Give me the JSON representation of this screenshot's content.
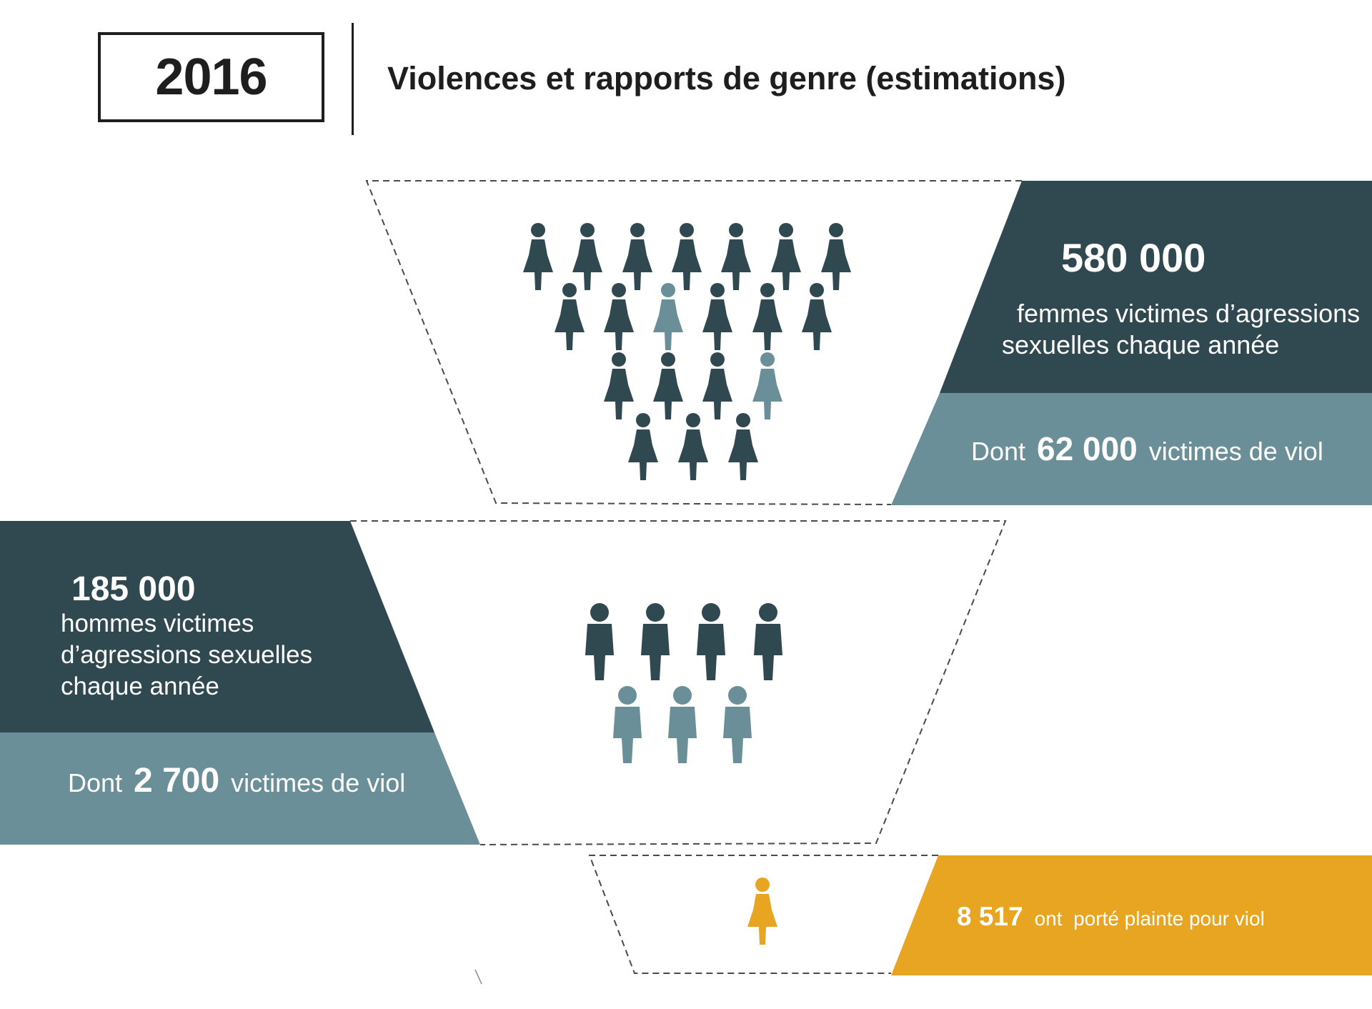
{
  "header": {
    "year": "2016",
    "title": "Violences et rapports de genre (estimations)"
  },
  "colors": {
    "dark": "#30484f",
    "light": "#6a8f98",
    "accent": "#e8a522",
    "text": "#1e1e1e"
  },
  "icons": {
    "women_group": "woman-icon",
    "men_group": "man-icon",
    "complaint": "woman-icon"
  },
  "women": {
    "count": "580 000",
    "description_line1": "femmes victimes d’agressions",
    "description_line2": "sexuelles chaque année",
    "rape_prefix": "Dont",
    "rape_count": "62 000",
    "rape_suffix": "victimes de viol",
    "icons_total": 20,
    "icons_highlighted": 2
  },
  "men": {
    "count": "185 000",
    "description_line1": "hommes victimes",
    "description_line2": "d’agressions sexuelles",
    "description_line3": "chaque année",
    "rape_prefix": "Dont",
    "rape_count": "2 700",
    "rape_suffix": "victimes de viol",
    "icons_total": 7,
    "icons_highlighted": 3
  },
  "complaints": {
    "count": "8 517",
    "description": "ont  porté plainte pour viol",
    "icons_total": 1
  }
}
